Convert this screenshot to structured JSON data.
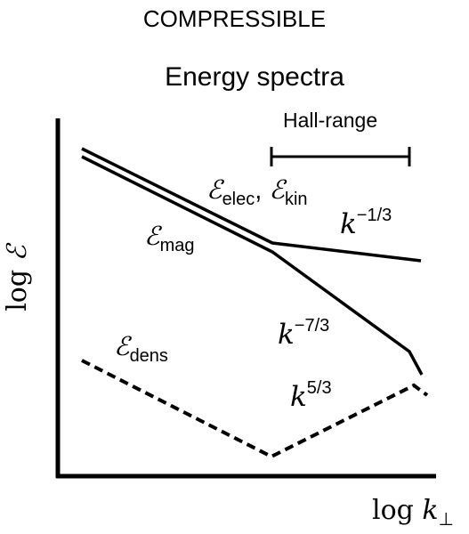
{
  "title": "COMPRESSIBLE",
  "subtitle": "Energy spectra",
  "hall_range_label": "Hall-range",
  "axes": {
    "ylabel_prefix": "log ",
    "ylabel_symbol": "ℰ",
    "xlabel_prefix": "log ",
    "xlabel_symbol": "k",
    "xlabel_sub": "⊥"
  },
  "curves": {
    "elec_kin": {
      "symbol": "ℰ",
      "sub1": "elec",
      "sep": ", ",
      "sub2": "kin"
    },
    "mag": {
      "symbol": "ℰ",
      "sub": "mag"
    },
    "dens": {
      "symbol": "ℰ",
      "sub": "dens"
    }
  },
  "slopes": {
    "k_minus_1_3": {
      "base": "k",
      "exp": "−1/3"
    },
    "k_minus_7_3": {
      "base": "k",
      "exp": "−7/3"
    },
    "k_5_3": {
      "base": "k",
      "exp": "5/3"
    }
  },
  "colors": {
    "line": "#000000",
    "background": "#ffffff"
  }
}
